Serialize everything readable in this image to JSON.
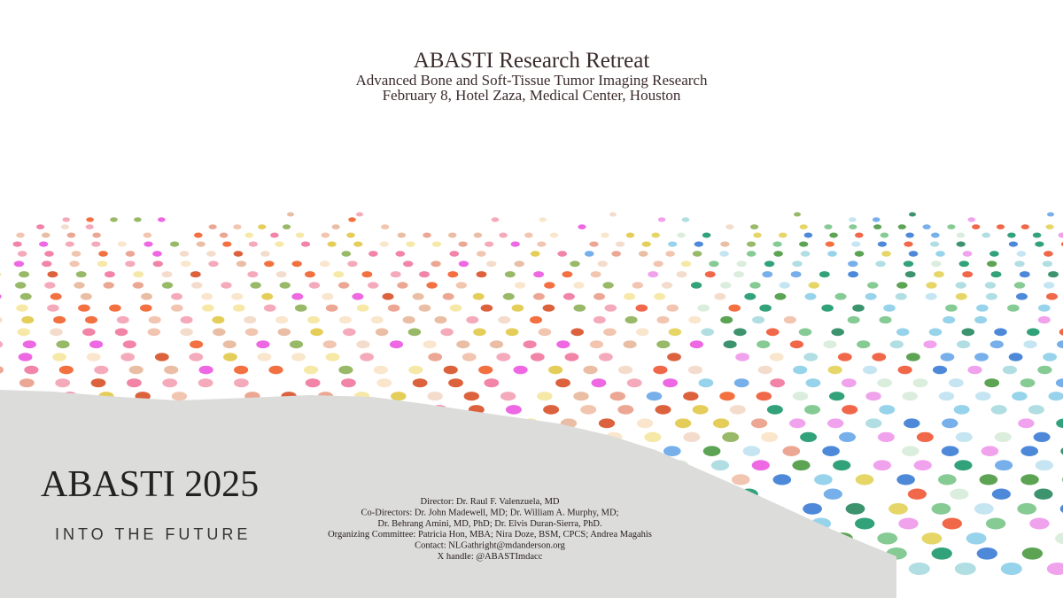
{
  "header": {
    "title": "ABASTI  Research Retreat",
    "subtitle": "Advanced Bone and Soft-Tissue Tumor Imaging Research",
    "date_location": "February 8, Hotel Zaza, Medical Center, Houston"
  },
  "hero": {
    "title": "ABASTI 2025",
    "tagline": "INTO THE FUTURE"
  },
  "credits": [
    "Director: Dr. Raul F. Valenzuela, MD",
    "Co-Directors: Dr. John Madewell, MD; Dr. William A. Murphy, MD;",
    "Dr. Behrang Amini, MD, PhD; Dr. Elvis Duran-Sierra, PhD.",
    "Organizing Committee: Patricia Hon, MBA; Nira Doze, BSM, CPCS; Andrea Magahis",
    "Contact: NLGathright@mdanderson.org",
    "X handle: @ABASTImdacc"
  ]
}
